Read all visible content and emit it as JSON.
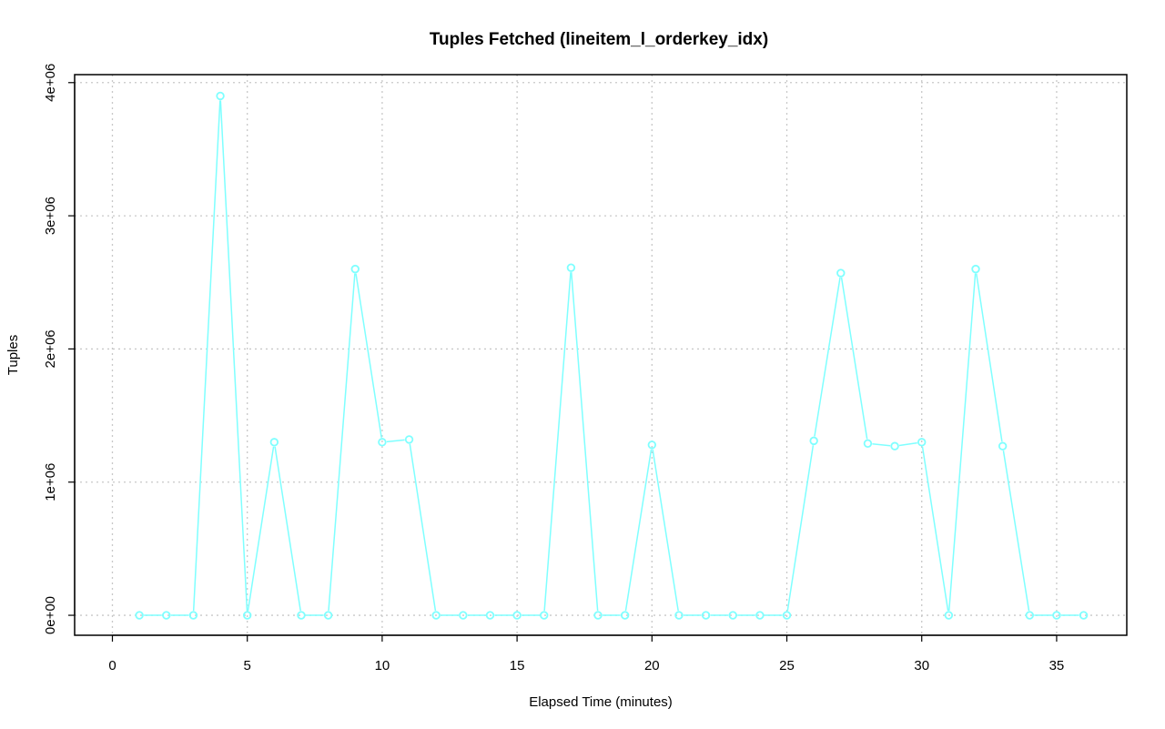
{
  "chart_data": {
    "type": "line",
    "title": "Tuples Fetched (lineitem_l_orderkey_idx)",
    "xlabel": "Elapsed Time (minutes)",
    "ylabel": "Tuples",
    "xlim": [
      -1.4,
      37.6
    ],
    "ylim": [
      -150000,
      4060000
    ],
    "x_ticks": [
      0,
      5,
      10,
      15,
      20,
      25,
      30,
      35
    ],
    "x_tick_labels": [
      "0",
      "5",
      "10",
      "15",
      "20",
      "25",
      "30",
      "35"
    ],
    "y_ticks": [
      0,
      1000000,
      2000000,
      3000000,
      4000000
    ],
    "y_tick_labels": [
      "0e+00",
      "1e+06",
      "2e+06",
      "3e+06",
      "4e+06"
    ],
    "grid": true,
    "legend": "none",
    "series": [
      {
        "color": "#7fffff",
        "marker": "open-circle",
        "x": [
          1,
          2,
          3,
          4,
          5,
          6,
          7,
          8,
          9,
          10,
          11,
          12,
          13,
          14,
          15,
          16,
          17,
          18,
          19,
          20,
          21,
          22,
          23,
          24,
          25,
          26,
          27,
          28,
          29,
          30,
          31,
          32,
          33,
          34,
          35,
          36
        ],
        "y": [
          0,
          0,
          0,
          3900000,
          0,
          1300000,
          0,
          0,
          2600000,
          1300000,
          1320000,
          0,
          0,
          0,
          0,
          0,
          2610000,
          0,
          0,
          1280000,
          0,
          0,
          0,
          0,
          0,
          1310000,
          2570000,
          1290000,
          1270000,
          1300000,
          0,
          2600000,
          1270000,
          0,
          0,
          0
        ]
      }
    ]
  }
}
